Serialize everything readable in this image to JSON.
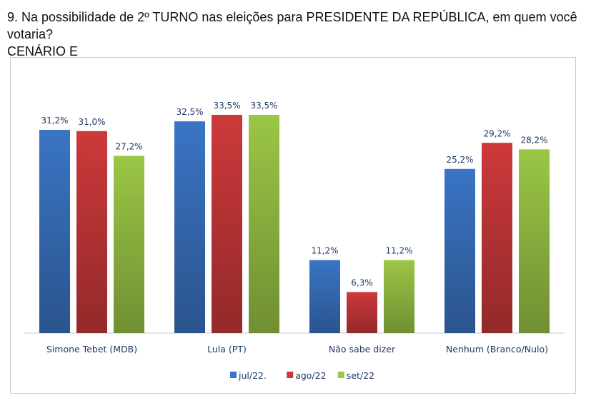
{
  "title_line1": "9. Na possibilidade de 2º TURNO nas eleições para PRESIDENTE DA REPÚBLICA, em quem você votaria?",
  "title_line2": "CENÁRIO E",
  "colors": {
    "jul": "#3a74c4",
    "ago": "#cc393b",
    "set": "#9bc646",
    "text": "#1f3a64",
    "axis": "#c4c8cc"
  },
  "chart_data": {
    "type": "bar",
    "categories": [
      "Simone Tebet (MDB)",
      "Lula (PT)",
      "Não sabe dizer",
      "Nenhum (Branco/Nulo)"
    ],
    "series": [
      {
        "name": "jul/22.",
        "values": [
          31.2,
          32.5,
          11.2,
          25.2
        ],
        "labels": [
          "31,2%",
          "32,5%",
          "11,2%",
          "25,2%"
        ]
      },
      {
        "name": "ago/22",
        "values": [
          31.0,
          33.5,
          6.3,
          29.2
        ],
        "labels": [
          "31,0%",
          "33,5%",
          "6,3%",
          "29,2%"
        ]
      },
      {
        "name": "set/22",
        "values": [
          27.2,
          33.5,
          11.2,
          28.2
        ],
        "labels": [
          "27,2%",
          "33,5%",
          "11,2%",
          "28,2%"
        ]
      }
    ],
    "ylim": [
      0,
      35
    ],
    "grid": false,
    "legend": "bottom"
  }
}
